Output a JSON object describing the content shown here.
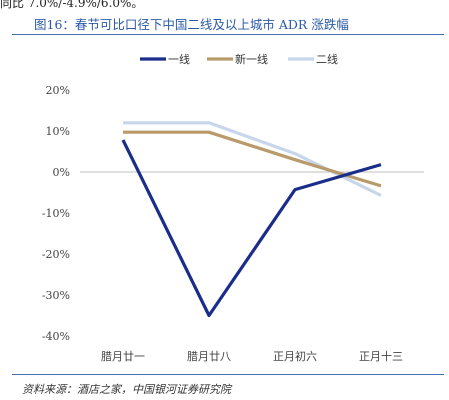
{
  "top_text": "同比 7.0%/-4.9%/6.0%。",
  "figure_title": "图16：春节可比口径下中国二线及以上城市 ADR 涨跌幅",
  "source": "资料来源：酒店之家，中国银河证券研究院",
  "chart_data": {
    "type": "line",
    "title": "",
    "xlabel": "",
    "ylabel": "",
    "categories": [
      "腊月廿一",
      "腊月廿八",
      "正月初六",
      "正月十三"
    ],
    "ylim": [
      -40,
      20
    ],
    "yticks": [
      20,
      10,
      0,
      -10,
      -20,
      -30,
      -40
    ],
    "ytick_labels": [
      "20%",
      "10%",
      "0%",
      "-10%",
      "-20%",
      "-30%",
      "-40%"
    ],
    "grid": false,
    "legend_position": "top-center",
    "series": [
      {
        "name": "一线",
        "color": "#1a2d8a",
        "values": [
          7.8,
          -35.0,
          -4.3,
          1.8
        ]
      },
      {
        "name": "新一线",
        "color": "#b99a6b",
        "values": [
          9.7,
          9.7,
          3.0,
          -3.4
        ]
      },
      {
        "name": "二线",
        "color": "#c8d6ec",
        "values": [
          12.0,
          12.0,
          4.5,
          -5.7
        ]
      }
    ]
  }
}
